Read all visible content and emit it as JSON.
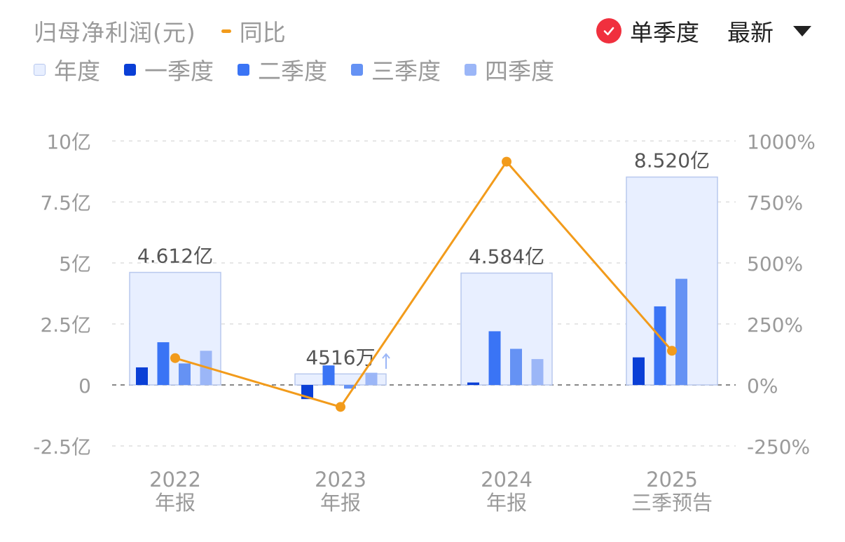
{
  "header": {
    "title": "归母净利润(元)",
    "yoy_legend": "同比",
    "toggle_label": "单季度",
    "sort_label": "最新"
  },
  "legend": [
    {
      "label": "年度",
      "color": "#e8efff",
      "border": "#b8c8ee"
    },
    {
      "label": "一季度",
      "color": "#0a3fd6"
    },
    {
      "label": "二季度",
      "color": "#3a74f5"
    },
    {
      "label": "三季度",
      "color": "#6592f4"
    },
    {
      "label": "四季度",
      "color": "#9bb6f7"
    }
  ],
  "chart_data": {
    "type": "bar",
    "categories": [
      {
        "year": "2022",
        "period": "年报"
      },
      {
        "year": "2023",
        "period": "年报"
      },
      {
        "year": "2024",
        "period": "年报"
      },
      {
        "year": "2025",
        "period": "三季预告"
      }
    ],
    "annual": {
      "values": [
        4.612,
        0.4516,
        4.584,
        8.52
      ],
      "labels": [
        "4.612亿",
        "4516万",
        "4.584亿",
        "8.520亿"
      ]
    },
    "quarterly_series": [
      {
        "name": "一季度",
        "values": [
          0.72,
          -0.58,
          0.1,
          1.13
        ]
      },
      {
        "name": "二季度",
        "values": [
          1.75,
          0.8,
          2.2,
          3.22
        ]
      },
      {
        "name": "三季度",
        "values": [
          0.88,
          -0.15,
          1.48,
          4.35
        ]
      },
      {
        "name": "四季度",
        "values": [
          1.4,
          0.5,
          1.06,
          null
        ]
      }
    ],
    "yoy_series": {
      "name": "同比",
      "values": [
        110,
        -90,
        915,
        140
      ]
    },
    "y_left": {
      "ylim": [
        -2.5,
        10
      ],
      "ticks": [
        "-2.5亿",
        "0",
        "2.5亿",
        "5亿",
        "7.5亿",
        "10亿"
      ],
      "tick_values": [
        -2.5,
        0,
        2.5,
        5,
        7.5,
        10
      ]
    },
    "y_right": {
      "ylim": [
        -250,
        1000
      ],
      "ticks": [
        "-250%",
        "0%",
        "250%",
        "500%",
        "750%",
        "1000%"
      ],
      "tick_values": [
        -250,
        0,
        250,
        500,
        750,
        1000
      ]
    },
    "colors": {
      "annual_fill": "#e8efff",
      "annual_border": "#b8c8ee",
      "yoy": "#f29b1b",
      "grid": "#dddddd",
      "zero": "#888888",
      "tick": "#9a9a9a",
      "label": "#555555"
    },
    "grid": true,
    "legend_position": "top-left"
  }
}
